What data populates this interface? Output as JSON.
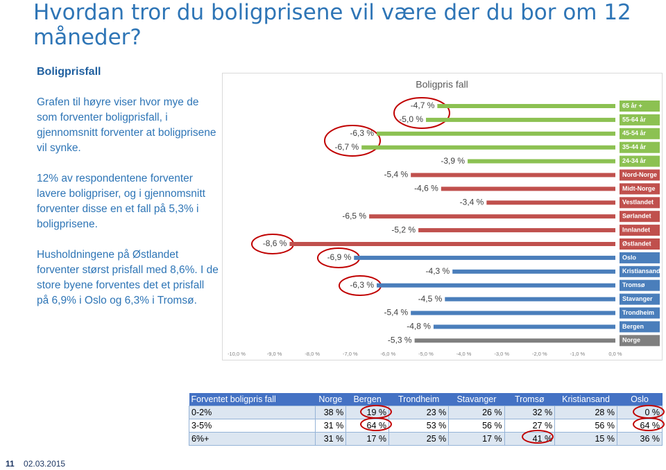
{
  "title": "Hvordan tror du boligprisene vil være der du bor om 12 måneder?",
  "text": {
    "heading": "Boligprisfall",
    "paragraphs": [
      "Grafen til høyre viser hvor mye de som forventer boligprisfall, i gjennomsnitt forventer at boligprisene vil synke.",
      "12% av respondentene forventer lavere boligpriser, og i gjennomsnitt forventer disse en et fall på 5,3% i boligprisene.",
      "Husholdningene på Østlandet forventer størst prisfall med 8,6%. I de store byene forventes det et prisfall på 6,9% i Oslo og 6,3% i Tromsø."
    ]
  },
  "chart_data": {
    "type": "hbar",
    "title": "Boligpris fall",
    "categories": [
      "65 år +",
      "55-64 år",
      "45-54 år",
      "35-44 år",
      "24-34 år",
      "Nord-Norge",
      "Midt-Norge",
      "Vestlandet",
      "Sørlandet",
      "Innlandet",
      "Østlandet",
      "Oslo",
      "Kristiansand",
      "Tromsø",
      "Stavanger",
      "Trondheim",
      "Bergen",
      "Norge"
    ],
    "values": [
      -4.7,
      -5.0,
      -6.3,
      -6.7,
      -3.9,
      -5.4,
      -4.6,
      -3.4,
      -6.5,
      -5.2,
      -8.6,
      -6.9,
      -4.3,
      -6.3,
      -4.5,
      -5.4,
      -4.8,
      -5.3
    ],
    "value_labels": [
      "-4,7 %",
      "-5,0 %",
      "-6,3 %",
      "-6,7 %",
      "-3,9 %",
      "-5,4 %",
      "-4,6 %",
      "-3,4 %",
      "-6,5 %",
      "-5,2 %",
      "-8,6 %",
      "-6,9 %",
      "-4,3 %",
      "-6,3 %",
      "-4,5 %",
      "-5,4 %",
      "-4,8 %",
      "-5,3 %"
    ],
    "colors": [
      "#8cc152",
      "#8cc152",
      "#8cc152",
      "#8cc152",
      "#8cc152",
      "#c0504d",
      "#c0504d",
      "#c0504d",
      "#c0504d",
      "#c0504d",
      "#c0504d",
      "#4a7ebb",
      "#4a7ebb",
      "#4a7ebb",
      "#4a7ebb",
      "#4a7ebb",
      "#4a7ebb",
      "#7f7f7f"
    ],
    "xlim": [
      -10,
      0
    ],
    "xticks": [
      {
        "value": -10,
        "label": "-10,0 %"
      },
      {
        "value": -9,
        "label": "-9,0 %"
      },
      {
        "value": -8,
        "label": "-8,0 %"
      },
      {
        "value": -7,
        "label": "-7,0 %"
      },
      {
        "value": -6,
        "label": "-6,0 %"
      },
      {
        "value": -5,
        "label": "-5,0 %"
      },
      {
        "value": -4,
        "label": "-4,0 %"
      },
      {
        "value": -3,
        "label": "-3,0 %"
      },
      {
        "value": -2,
        "label": "-2,0 %"
      },
      {
        "value": -1,
        "label": "-1,0 %"
      },
      {
        "value": 0,
        "label": "0,0 %"
      }
    ],
    "grid": false
  },
  "table": {
    "header": [
      "Forventet boligpris fall",
      "Norge",
      "Bergen",
      "Trondheim",
      "Stavanger",
      "Tromsø",
      "Kristiansand",
      "Oslo"
    ],
    "rows": [
      [
        "0-2%",
        "38 %",
        "19 %",
        "23 %",
        "26 %",
        "32 %",
        "28 %",
        "0 %"
      ],
      [
        "3-5%",
        "31 %",
        "64 %",
        "53 %",
        "56 %",
        "27 %",
        "56 %",
        "64 %"
      ],
      [
        "6%+",
        "31 %",
        "17 %",
        "25 %",
        "17 %",
        "41 %",
        "15 %",
        "36 %"
      ]
    ]
  },
  "footer": {
    "page": "11",
    "date": "02.03.2015"
  }
}
